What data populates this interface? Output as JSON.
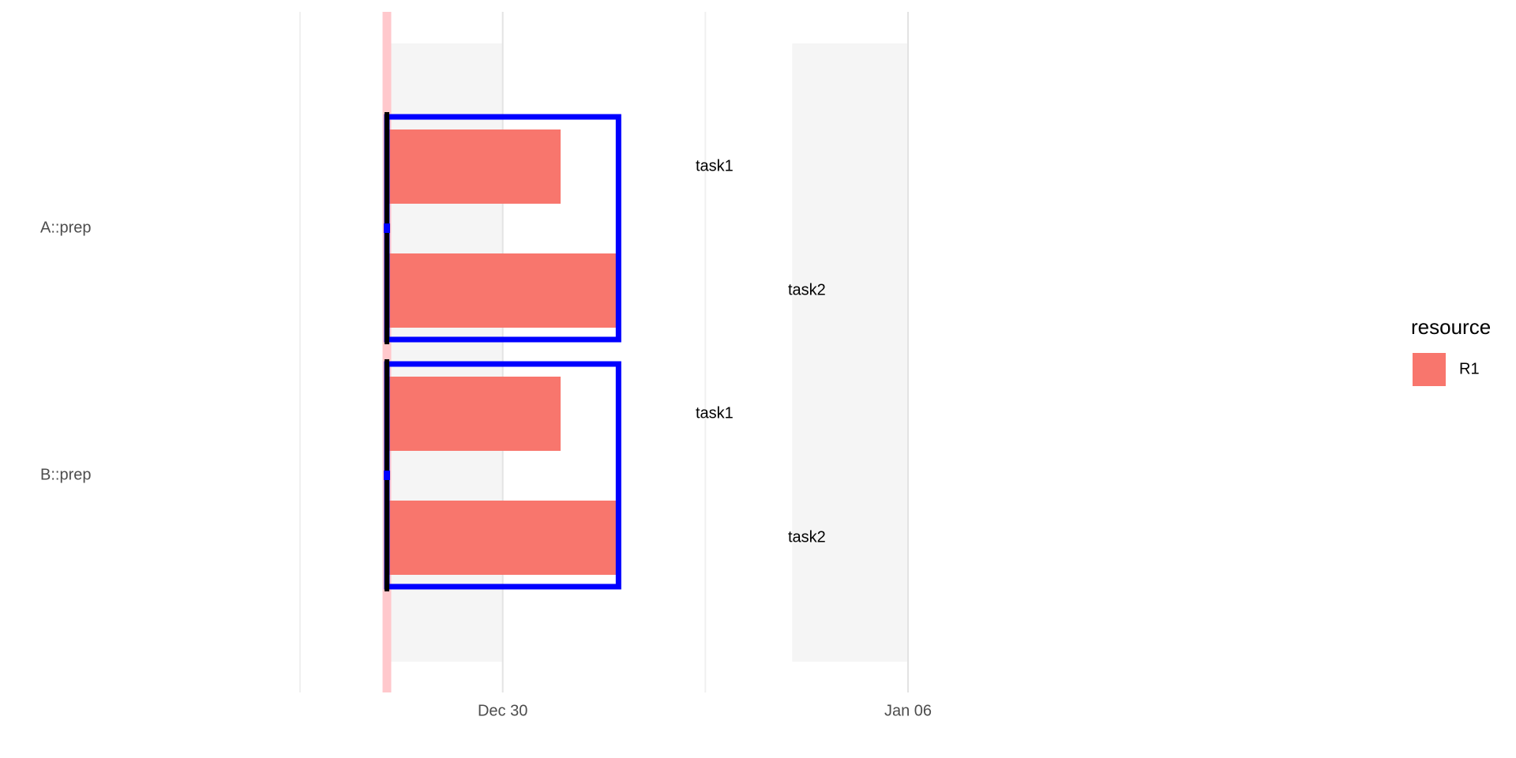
{
  "chart_data": {
    "type": "gantt",
    "title": "",
    "xlabel": "",
    "ylabel": "",
    "x_axis": {
      "type": "date",
      "domain_days": [
        -5,
        14.5
      ],
      "breaks": [
        {
          "day": 0,
          "label": "Dec 30"
        },
        {
          "day": 7,
          "label": "Jan 06"
        }
      ],
      "minor_breaks": [
        -3.5,
        3.5
      ]
    },
    "today_marker_day": -2,
    "shaded_periods": [
      {
        "start_day": -2,
        "end_day": 0
      },
      {
        "start_day": 5,
        "end_day": 7
      }
    ],
    "groups": [
      {
        "label": "A::prep",
        "box": {
          "start_day": -2,
          "end_day": 2
        },
        "tasks": [
          {
            "label": "task1",
            "resource": "R1",
            "start_day": -2,
            "end_day": 1
          },
          {
            "label": "task2",
            "resource": "R1",
            "start_day": -2,
            "end_day": 2
          }
        ]
      },
      {
        "label": "B::prep",
        "box": {
          "start_day": -2,
          "end_day": 2
        },
        "tasks": [
          {
            "label": "task1",
            "resource": "R1",
            "start_day": -2,
            "end_day": 1
          },
          {
            "label": "task2",
            "resource": "R1",
            "start_day": -2,
            "end_day": 2
          }
        ]
      }
    ],
    "legend": {
      "title": "resource",
      "position": "right",
      "items": [
        {
          "label": "R1",
          "color": "#F8766D"
        }
      ]
    },
    "grid": true
  },
  "colors": {
    "bar": "#F8766D",
    "group_box": "#0000FF",
    "shade": "#F5F5F5",
    "today": "#FFC8CC",
    "grid_major": "#E3E3E3",
    "grid_minor": "#F0F0F0",
    "stub": "#000000"
  }
}
